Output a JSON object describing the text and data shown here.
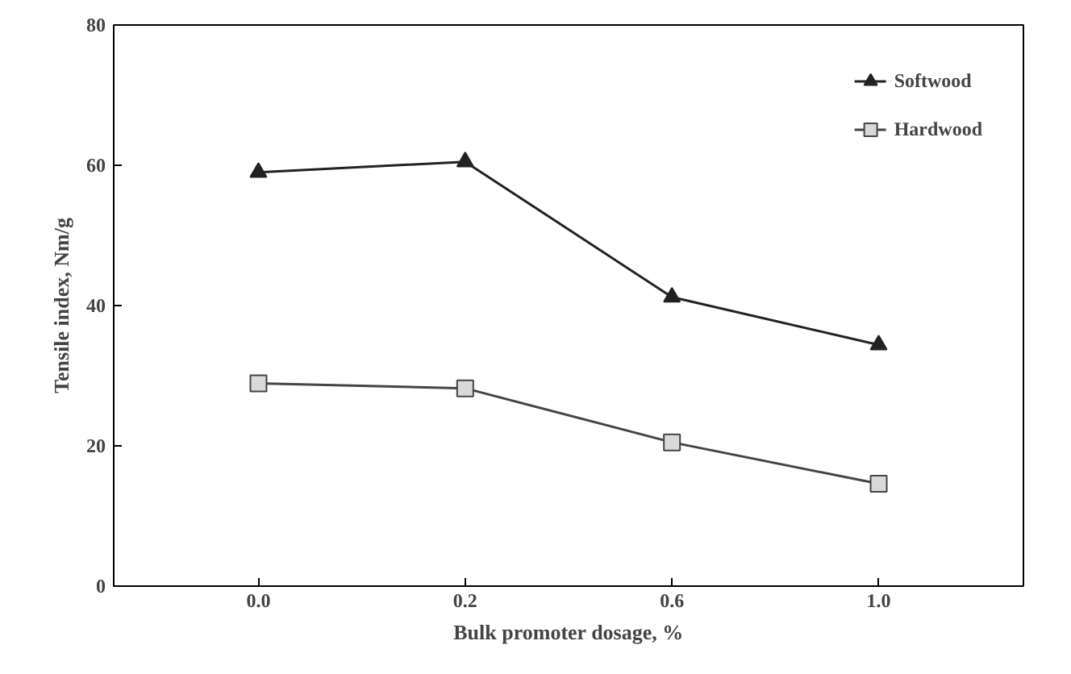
{
  "chart_data": {
    "type": "line",
    "xlabel": "Bulk promoter dosage, %",
    "ylabel": "Tensile index, Nm/g",
    "categories": [
      "0.0",
      "0.2",
      "0.6",
      "1.0"
    ],
    "series": [
      {
        "name": "Softwood",
        "color": "#222222",
        "marker": "triangle",
        "values": [
          59,
          60.5,
          41.2,
          34.4
        ]
      },
      {
        "name": "Hardwood",
        "color": "#444444",
        "marker": "square",
        "values": [
          28.9,
          28.2,
          20.5,
          14.6
        ]
      }
    ],
    "ylim": [
      0,
      80
    ],
    "yticks": [
      0,
      20,
      40,
      60,
      80
    ],
    "grid": false,
    "legend": "top right",
    "line_style": "solid"
  }
}
